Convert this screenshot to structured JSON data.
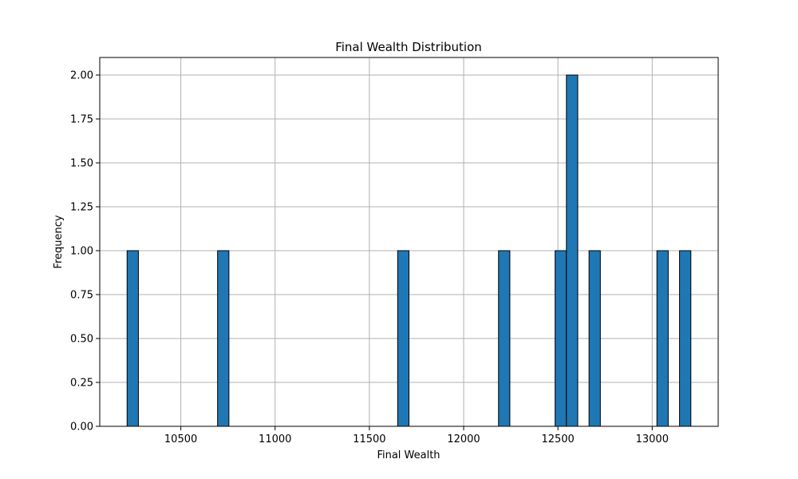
{
  "chart_data": {
    "type": "bar",
    "title": "Final Wealth Distribution",
    "xlabel": "Final Wealth",
    "ylabel": "Frequency",
    "xlim": [
      10070,
      13350
    ],
    "ylim": [
      0,
      2.1
    ],
    "grid": true,
    "legend": "none",
    "bar_color": "#1f77b4",
    "bin_width": 60,
    "bins": [
      {
        "start": 10215,
        "count": 1
      },
      {
        "start": 10695,
        "count": 1
      },
      {
        "start": 11650,
        "count": 1
      },
      {
        "start": 12185,
        "count": 1
      },
      {
        "start": 12485,
        "count": 1
      },
      {
        "start": 12545,
        "count": 2
      },
      {
        "start": 12665,
        "count": 1
      },
      {
        "start": 13025,
        "count": 1
      },
      {
        "start": 13145,
        "count": 1
      }
    ],
    "x_ticks": [
      10500,
      11000,
      11500,
      12000,
      12500,
      13000
    ],
    "x_tick_labels": [
      "10500",
      "11000",
      "11500",
      "12000",
      "12500",
      "13000"
    ],
    "y_ticks": [
      0,
      0.25,
      0.5,
      0.75,
      1.0,
      1.25,
      1.5,
      1.75,
      2.0
    ],
    "y_tick_labels": [
      "0.00",
      "0.25",
      "0.50",
      "0.75",
      "1.00",
      "1.25",
      "1.50",
      "1.75",
      "2.00"
    ]
  }
}
